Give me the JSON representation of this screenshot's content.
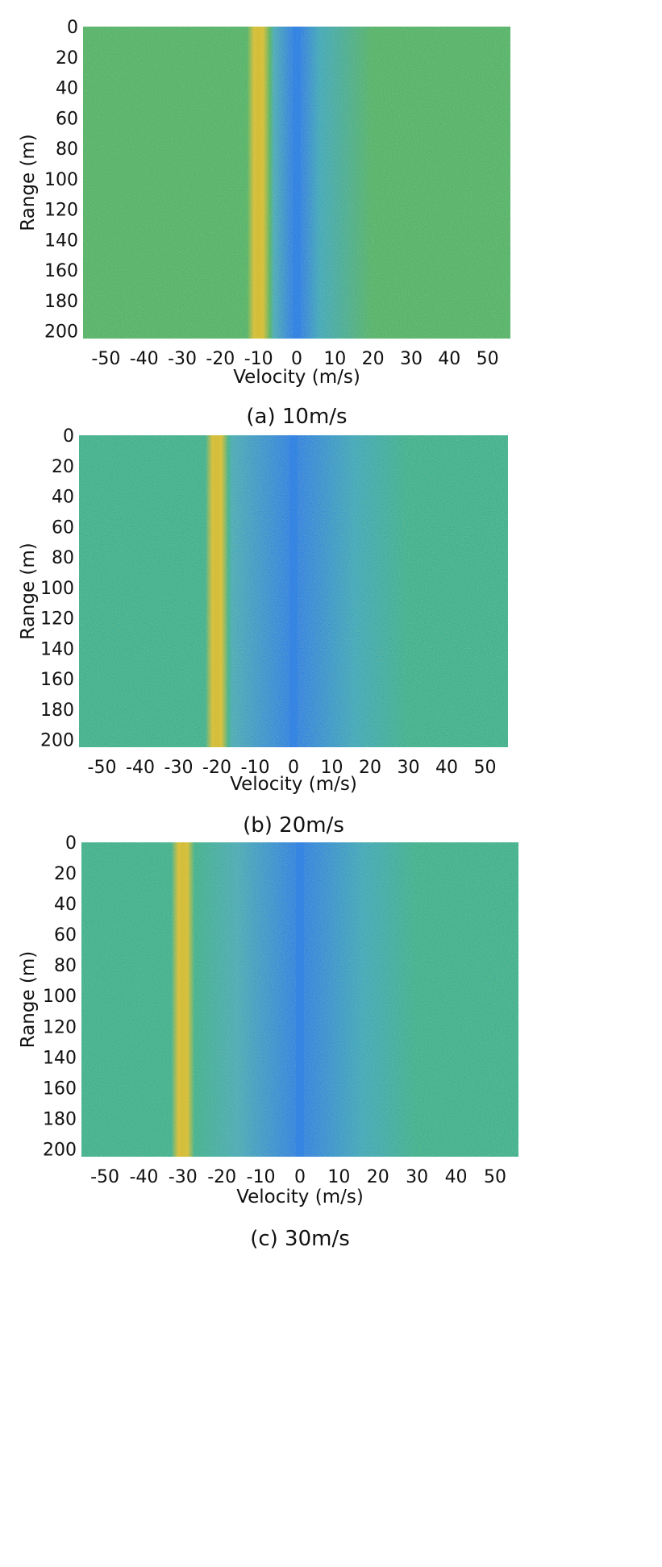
{
  "chart_data": [
    {
      "type": "heatmap",
      "caption": "(a) 10m/s",
      "xlabel": "Velocity (m/s)",
      "ylabel": "Range (m)",
      "xlim": [
        -56,
        56
      ],
      "ylim": [
        0,
        205
      ],
      "y_reversed": true,
      "xticks": [
        -50,
        -40,
        -30,
        -20,
        -10,
        0,
        10,
        20,
        30,
        40,
        50
      ],
      "yticks": [
        0,
        20,
        40,
        60,
        80,
        100,
        120,
        140,
        160,
        180,
        200
      ],
      "target_velocity": -10,
      "clutter_velocity": 0,
      "colors": {
        "background": "#52b26e",
        "target": "#d4bd3a",
        "clutter": "#2f82e6"
      }
    },
    {
      "type": "heatmap",
      "caption": "(b) 20m/s",
      "xlabel": "Velocity (m/s)",
      "ylabel": "Range (m)",
      "xlim": [
        -56,
        56
      ],
      "ylim": [
        0,
        205
      ],
      "y_reversed": true,
      "xticks": [
        -50,
        -40,
        -30,
        -20,
        -10,
        0,
        10,
        20,
        30,
        40,
        50
      ],
      "yticks": [
        0,
        20,
        40,
        60,
        80,
        100,
        120,
        140,
        160,
        180,
        200
      ],
      "target_velocity": -20,
      "clutter_velocity": 0,
      "colors": {
        "background": "#3eb094",
        "target": "#d4bd3a",
        "clutter": "#2f82e6"
      }
    },
    {
      "type": "heatmap",
      "caption": "(c) 30m/s",
      "xlabel": "Velocity (m/s)",
      "ylabel": "Range (m)",
      "xlim": [
        -56,
        56
      ],
      "ylim": [
        0,
        205
      ],
      "y_reversed": true,
      "xticks": [
        -50,
        -40,
        -30,
        -20,
        -10,
        0,
        10,
        20,
        30,
        40,
        50
      ],
      "yticks": [
        0,
        20,
        40,
        60,
        80,
        100,
        120,
        140,
        160,
        180,
        200
      ],
      "target_velocity": -30,
      "clutter_velocity": 0,
      "colors": {
        "background": "#3eb094",
        "target": "#d4bd3a",
        "clutter": "#2f82e6"
      }
    }
  ]
}
